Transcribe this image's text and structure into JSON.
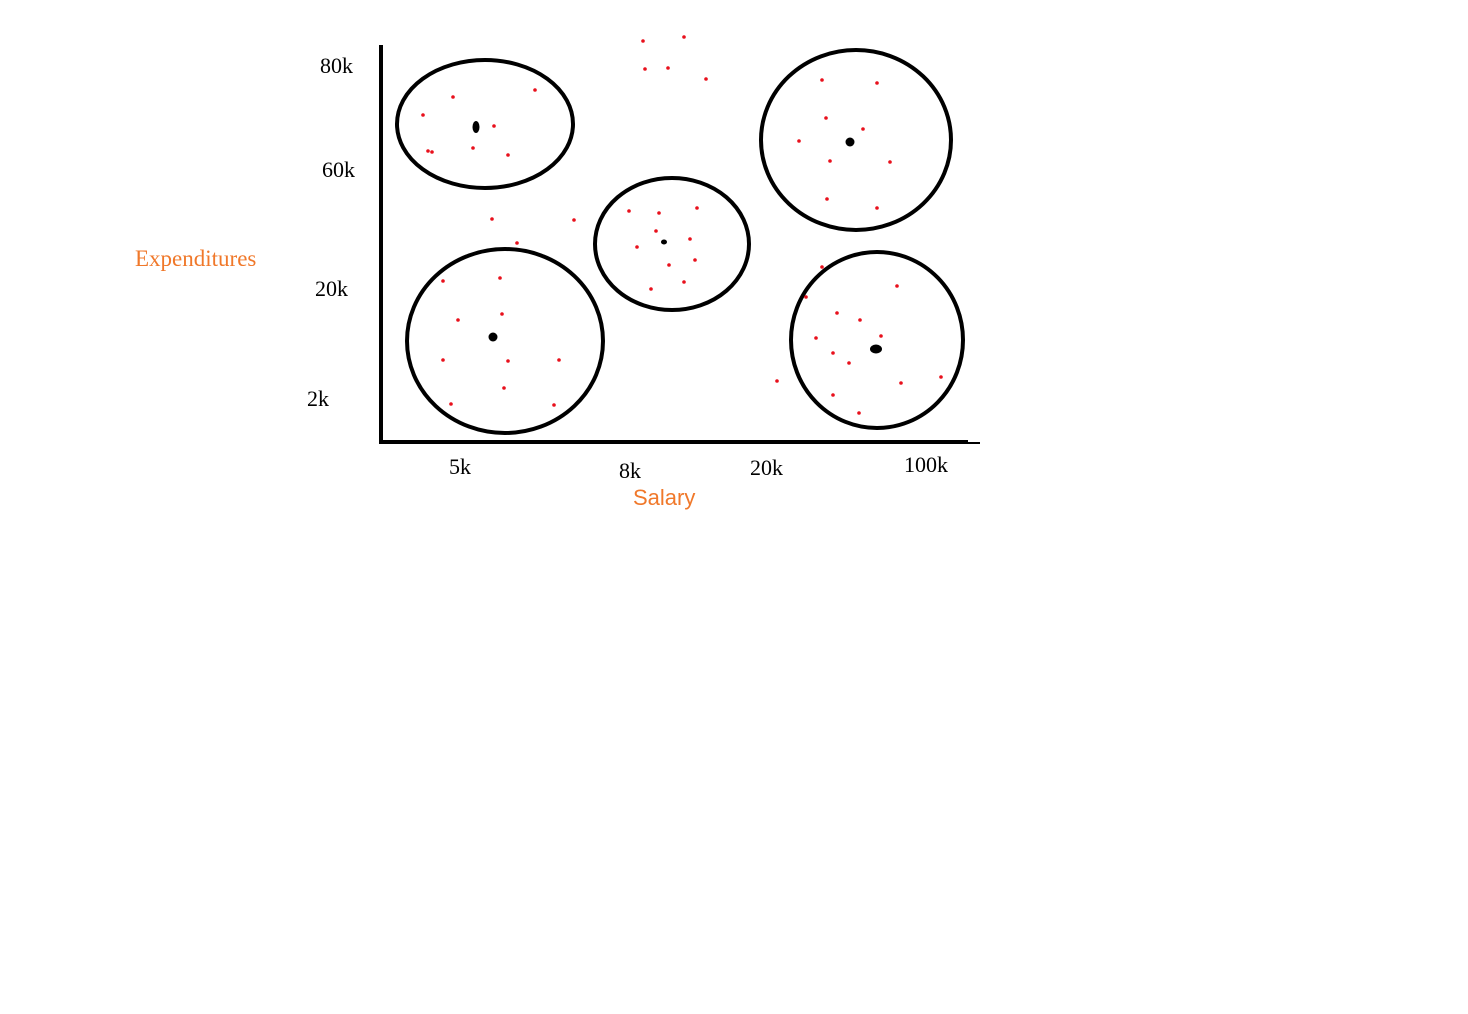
{
  "chart_data": {
    "type": "scatter",
    "xlabel": "Salary",
    "ylabel": "Expenditures",
    "x_ticks": [
      "5k",
      "8k",
      "20k",
      "100k"
    ],
    "y_ticks": [
      "80k",
      "60k",
      "20k",
      "2k"
    ],
    "clusters": 5,
    "colors": {
      "points": "#e8101c",
      "centroids": "#000000",
      "cluster_outline": "#000000",
      "axis": "#000000",
      "axis_titles": "#f0782a"
    }
  }
}
